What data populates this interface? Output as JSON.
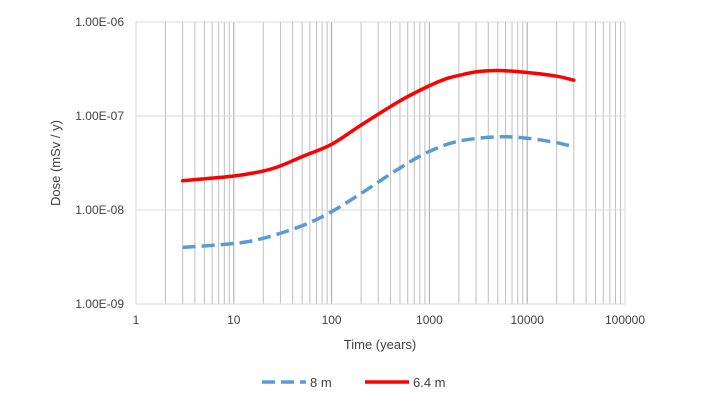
{
  "chart_data": {
    "type": "line",
    "xlabel": "Time (years)",
    "ylabel": "Dose (mSv / y)",
    "x_scale": "log",
    "y_scale": "log",
    "xlim": [
      1,
      100000
    ],
    "ylim": [
      1e-09,
      1e-06
    ],
    "x_tick_labels": [
      "1",
      "10",
      "100",
      "1000",
      "10000",
      "100000"
    ],
    "x_tick_values": [
      1,
      10,
      100,
      1000,
      10000,
      100000
    ],
    "y_tick_labels": [
      "1.00E-09",
      "1.00E-08",
      "1.00E-07",
      "1.00E-06"
    ],
    "y_tick_values": [
      1e-09,
      1e-08,
      1e-07,
      1e-06
    ],
    "grid": "vertical minor and major on x",
    "legend_position": "bottom",
    "series": [
      {
        "name": "8 m",
        "color": "#5b9bd5",
        "style": "dashed",
        "x": [
          3,
          10,
          20,
          50,
          100,
          200,
          500,
          1000,
          2000,
          5000,
          10000,
          20000,
          30000
        ],
        "y": [
          4e-09,
          4.4e-09,
          5e-09,
          6.8e-09,
          9.6e-09,
          1.5e-08,
          2.8e-08,
          4.2e-08,
          5.4e-08,
          6e-08,
          5.8e-08,
          5.2e-08,
          4.7e-08
        ]
      },
      {
        "name": "6.4 m",
        "color": "#ff0000",
        "style": "solid",
        "x": [
          3,
          10,
          20,
          30,
          50,
          100,
          200,
          500,
          1000,
          1500,
          2000,
          3000,
          5000,
          10000,
          20000,
          30000
        ],
        "y": [
          2.05e-08,
          2.3e-08,
          2.6e-08,
          2.95e-08,
          3.7e-08,
          5e-08,
          8e-08,
          1.45e-07,
          2.1e-07,
          2.5e-07,
          2.7e-07,
          2.95e-07,
          3.05e-07,
          2.9e-07,
          2.65e-07,
          2.4e-07
        ]
      }
    ]
  }
}
